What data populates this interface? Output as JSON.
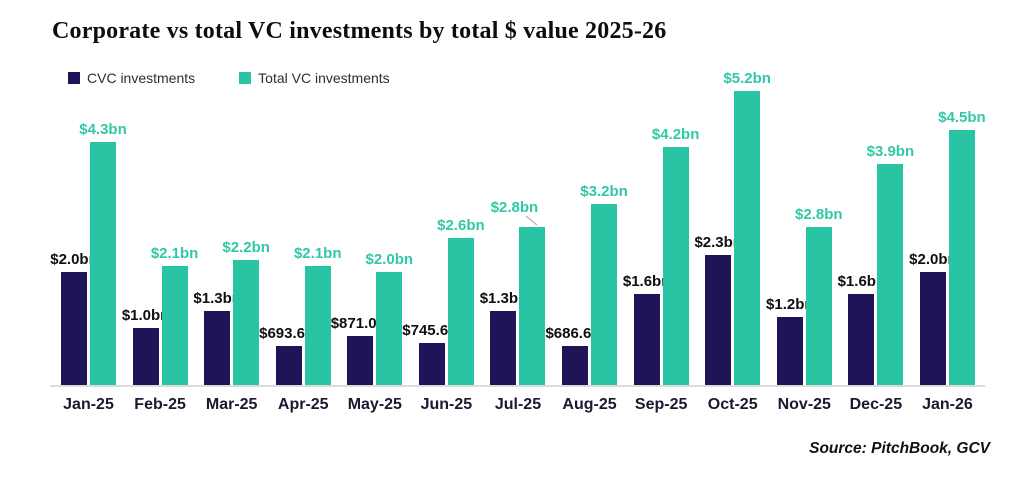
{
  "title": "Corporate vs total VC investments by total $ value 2025-26",
  "legend": {
    "items": [
      {
        "label": "CVC investments",
        "color": "#1f1458"
      },
      {
        "label": "Total VC investments",
        "color": "#28c4a4"
      }
    ]
  },
  "source_note": "Source: PitchBook, GCV",
  "colors": {
    "cvc_bar": "#1f1458",
    "total_bar": "#28c4a4",
    "cvc_label_text": "#0f0f0f",
    "total_label_text": "#32c7a7",
    "axis_line": "#dbdbdb",
    "category_text": "#191930",
    "title_text": "#0d0d0d"
  },
  "chart_data": {
    "type": "bar",
    "title": "Corporate vs total VC investments by total $ value 2025-26",
    "xlabel": "",
    "ylabel": "",
    "unit": "USD ($)",
    "ylim": [
      0,
      5.3
    ],
    "grid": false,
    "legend_position": "top-left",
    "source": "Source: PitchBook, GCV",
    "categories": [
      "Jan-25",
      "Feb-25",
      "Mar-25",
      "Apr-25",
      "May-25",
      "Jun-25",
      "Jul-25",
      "Aug-25",
      "Sep-25",
      "Oct-25",
      "Nov-25",
      "Dec-25",
      "Jan-26"
    ],
    "series": [
      {
        "name": "CVC investments",
        "color": "#1f1458",
        "label_color": "#0f0f0f",
        "values_bn": [
          2.0,
          1.0,
          1.3,
          0.6936,
          0.871,
          0.7456,
          1.3,
          0.6866,
          1.6,
          2.3,
          1.2,
          1.6,
          2.0
        ],
        "labels": [
          "$2.0bn",
          "$1.0bn",
          "$1.3bn",
          "$693.6m",
          "$871.0m",
          "$745.6m",
          "$1.3bn",
          "$686.6m",
          "$1.6bn",
          "$2.3bn",
          "$1.2bn",
          "$1.6bn",
          "$2.0bn"
        ]
      },
      {
        "name": "Total VC investments",
        "color": "#28c4a4",
        "label_color": "#32c7a7",
        "values_bn": [
          4.3,
          2.1,
          2.2,
          2.1,
          2.0,
          2.6,
          2.8,
          3.2,
          4.2,
          5.2,
          2.8,
          3.9,
          4.5
        ],
        "labels": [
          "$4.3bn",
          "$2.1bn",
          "$2.2bn",
          "$2.1bn",
          "$2.0bn",
          "$2.6bn",
          "$2.8bn",
          "$3.2bn",
          "$4.2bn",
          "$5.2bn",
          "$2.8bn",
          "$3.9bn",
          "$4.5bn"
        ],
        "label_offsets": [
          {
            "index": 6,
            "dx": -18,
            "leader": true
          }
        ]
      }
    ]
  }
}
